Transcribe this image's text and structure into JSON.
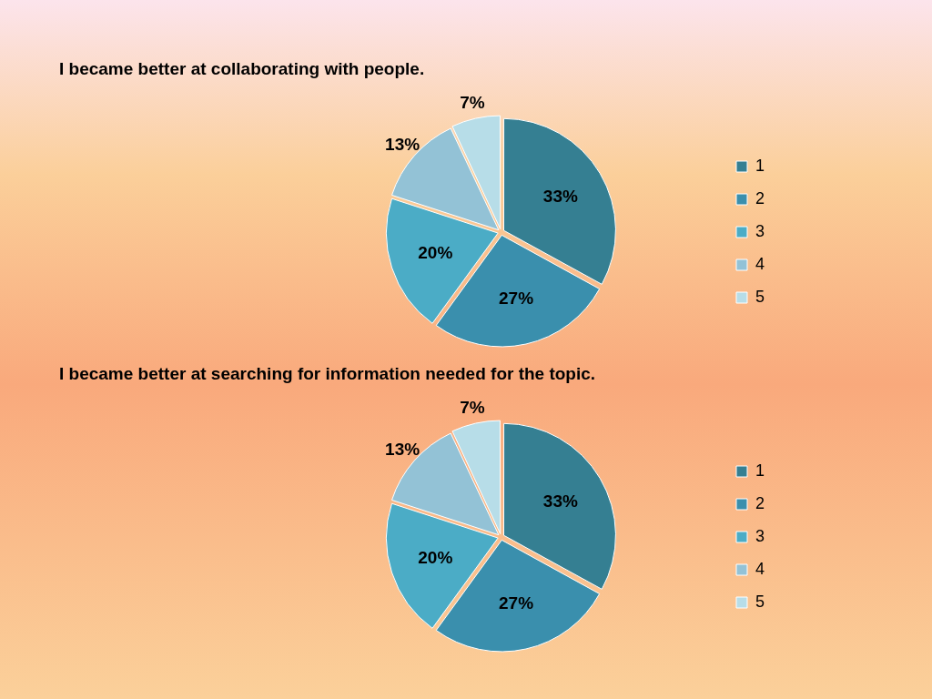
{
  "chart_data": [
    {
      "type": "pie",
      "title": "I became better at collaborating with people.",
      "categories": [
        "1",
        "2",
        "3",
        "4",
        "5"
      ],
      "values": [
        33,
        27,
        20,
        13,
        7
      ],
      "colors": [
        "#357f92",
        "#3a8fad",
        "#4bacc6",
        "#93c2d6",
        "#b7dde8"
      ],
      "value_labels": [
        "33%",
        "27%",
        "20%",
        "13%",
        "7%"
      ],
      "legend": "right"
    },
    {
      "type": "pie",
      "title": "I became better at searching for information needed for the topic.",
      "categories": [
        "1",
        "2",
        "3",
        "4",
        "5"
      ],
      "values": [
        33,
        27,
        20,
        13,
        7
      ],
      "colors": [
        "#357f92",
        "#3a8fad",
        "#4bacc6",
        "#93c2d6",
        "#b7dde8"
      ],
      "value_labels": [
        "33%",
        "27%",
        "20%",
        "13%",
        "7%"
      ],
      "legend": "right"
    }
  ]
}
